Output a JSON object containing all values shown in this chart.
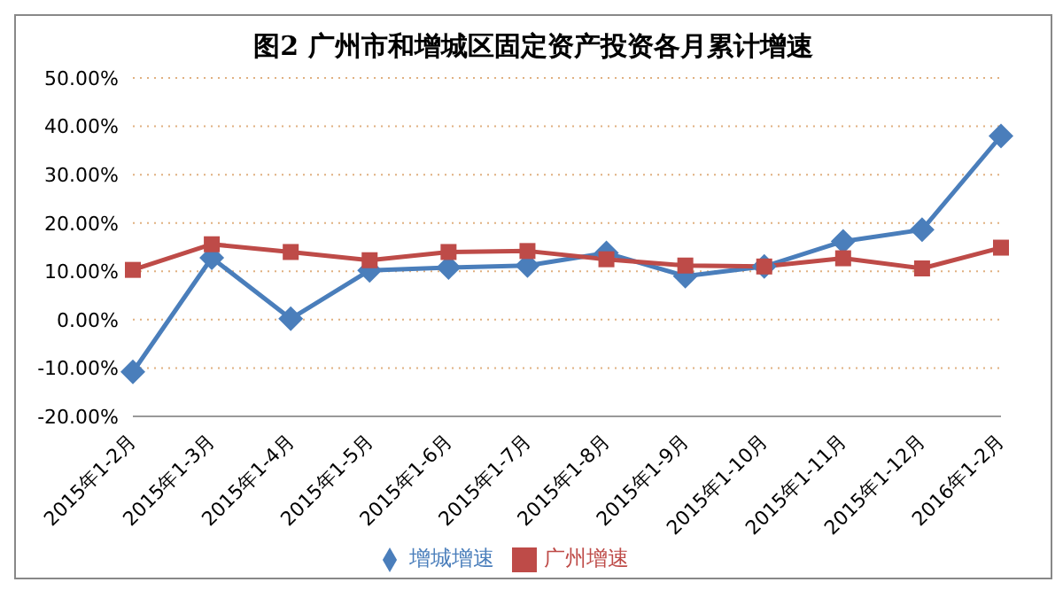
{
  "chart_data": {
    "type": "line",
    "title": "图2  广州市和增城区固定资产投资各月累计增速",
    "categories": [
      "2015年1-2月",
      "2015年1-3月",
      "2015年1-4月",
      "2015年1-5月",
      "2015年1-6月",
      "2015年1-7月",
      "2015年1-8月",
      "2015年1-9月",
      "2015年1-10月",
      "2015年1-11月",
      "2015年1-12月",
      "2016年1-2月"
    ],
    "series": [
      {
        "name": "增城增速",
        "color": "#4a7ebb",
        "marker": "diamond",
        "values": [
          -10.8,
          12.8,
          0.2,
          10.2,
          10.8,
          11.2,
          13.8,
          9.0,
          11.0,
          16.2,
          18.6,
          38.0
        ]
      },
      {
        "name": "广州增速",
        "color": "#be4b48",
        "marker": "square",
        "values": [
          10.3,
          15.6,
          14.0,
          12.3,
          14.0,
          14.2,
          12.5,
          11.2,
          11.0,
          12.7,
          10.6,
          14.9
        ]
      }
    ],
    "ylim": [
      -20,
      50
    ],
    "yticks": [
      {
        "value": -20,
        "label": "-20.00%"
      },
      {
        "value": -10,
        "label": "-10.00%"
      },
      {
        "value": 0,
        "label": "0.00%"
      },
      {
        "value": 10,
        "label": "10.00%"
      },
      {
        "value": 20,
        "label": "20.00%"
      },
      {
        "value": 30,
        "label": "30.00%"
      },
      {
        "value": 40,
        "label": "40.00%"
      },
      {
        "value": 50,
        "label": "50.00%"
      }
    ],
    "grid": "y",
    "legend": "bottom"
  }
}
